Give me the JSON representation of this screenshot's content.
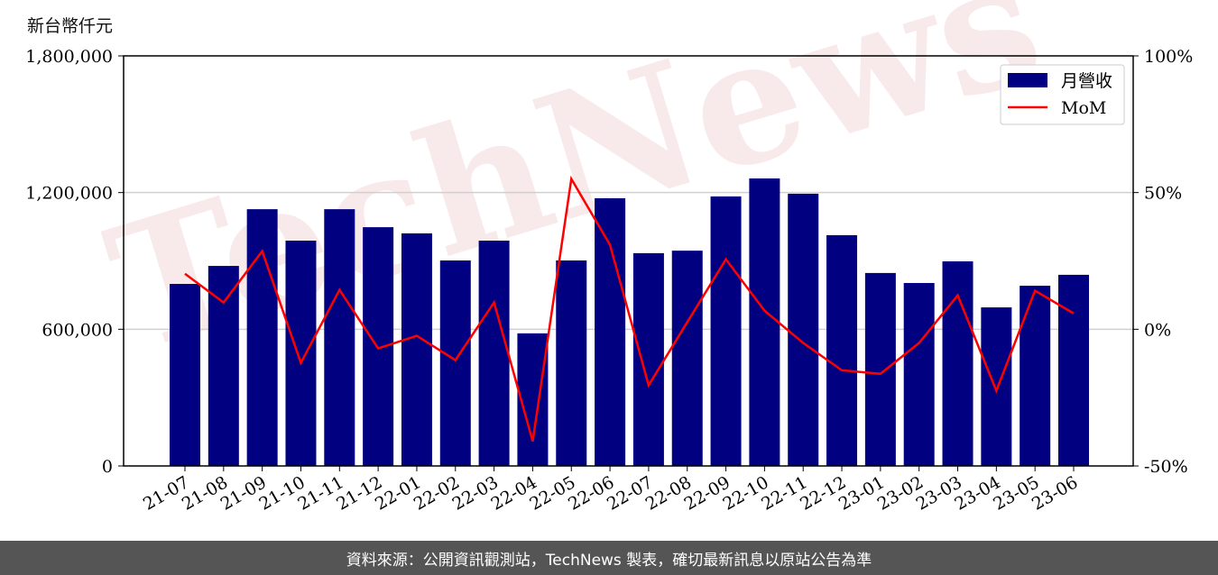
{
  "chart_data": {
    "type": "bar+line",
    "title": "",
    "ylabel": "新台幣仟元",
    "ylim": [
      0,
      1800000
    ],
    "y_ticks": [
      "0",
      "600,000",
      "1,200,000",
      "1,800,000"
    ],
    "y2lim": [
      -50,
      100
    ],
    "y2_ticks": [
      "-50%",
      "0%",
      "50%",
      "100%"
    ],
    "categories": [
      "21-07",
      "21-08",
      "21-09",
      "21-10",
      "21-11",
      "21-12",
      "22-01",
      "22-02",
      "22-03",
      "22-04",
      "22-05",
      "22-06",
      "22-07",
      "22-08",
      "22-09",
      "22-10",
      "22-11",
      "22-12",
      "23-01",
      "23-02",
      "23-03",
      "23-04",
      "23-05",
      "23-06"
    ],
    "series": [
      {
        "name": "月營收",
        "type": "bar",
        "axis": "left",
        "color": "#000080",
        "values": [
          799000,
          878000,
          1127000,
          989000,
          1127000,
          1048000,
          1021000,
          902000,
          989000,
          582000,
          902000,
          1175000,
          934000,
          945000,
          1183000,
          1262000,
          1195000,
          1013000,
          847000,
          803000,
          898000,
          696000,
          791000,
          839000
        ]
      },
      {
        "name": "MoM",
        "type": "line",
        "axis": "right",
        "color": "#ff0000",
        "values": [
          20.3,
          9.8,
          28.6,
          -12.3,
          14.4,
          -7.0,
          -2.4,
          -11.3,
          9.8,
          -41.0,
          55.0,
          30.9,
          -20.5,
          2.6,
          25.6,
          6.8,
          -5.0,
          -15.0,
          -16.3,
          -5.0,
          12.4,
          -22.5,
          14.1,
          5.8
        ]
      }
    ],
    "legend": "top-right",
    "grid": "horizontal"
  },
  "watermark": "TechNews",
  "footer": "資料來源：公開資訊觀測站，TechNews 製表，確切最新訊息以原站公告為準"
}
